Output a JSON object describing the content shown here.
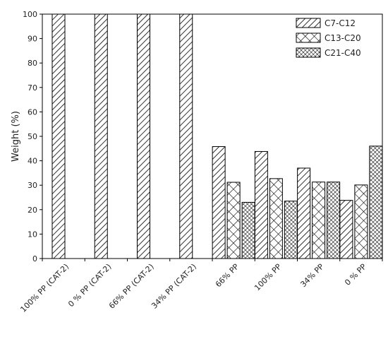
{
  "chart_data": {
    "type": "bar",
    "categories": [
      "100% PP (CAT-2)",
      "0 % PP (CAT-2)",
      "66% PP (CAT-2)",
      "34% PP (CAT-2)",
      "66% PP",
      "100% PP",
      "34% PP",
      "0 % PP"
    ],
    "series": [
      {
        "name": "C7-C12",
        "values": [
          100,
          100,
          100,
          100,
          45.8,
          43.8,
          37,
          23.8
        ]
      },
      {
        "name": "C13-C20",
        "values": [
          0,
          0,
          0,
          0,
          31.2,
          32.7,
          31.3,
          30.1
        ]
      },
      {
        "name": "C21-C40",
        "values": [
          0,
          0,
          0,
          0,
          23,
          23.5,
          31.3,
          46
        ]
      }
    ],
    "title": "",
    "xlabel": "",
    "ylabel": "Weight (%)",
    "ylim": [
      0,
      100
    ],
    "yticks": [
      0,
      10,
      20,
      30,
      40,
      50,
      60,
      70,
      80,
      90,
      100
    ],
    "grid": false,
    "legend": "top-right",
    "patterns": [
      "diagonal-hatch",
      "cross-hatch",
      "dense-cross-hatch"
    ]
  }
}
